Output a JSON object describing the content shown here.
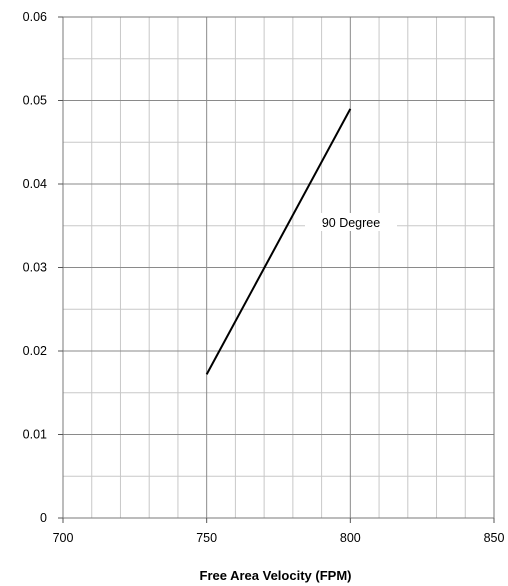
{
  "chart_data": {
    "type": "line",
    "title": "",
    "xlabel": "Free Area Velocity (FPM)",
    "ylabel": "",
    "xlim": [
      700,
      850
    ],
    "ylim": [
      0,
      0.06
    ],
    "x_ticks": [
      700,
      750,
      800,
      850
    ],
    "x_tick_labels": [
      "700",
      "750",
      "800",
      "850"
    ],
    "y_ticks": [
      0,
      0.01,
      0.02,
      0.03,
      0.04,
      0.05,
      0.06
    ],
    "y_tick_labels": [
      "0",
      "0.01",
      "0.02",
      "0.03",
      "0.04",
      "0.05",
      "0.06"
    ],
    "grid": true,
    "series": [
      {
        "name": "90 Degree",
        "x": [
          750,
          800
        ],
        "y": [
          0.0172,
          0.049
        ],
        "color": "#000000"
      }
    ]
  }
}
